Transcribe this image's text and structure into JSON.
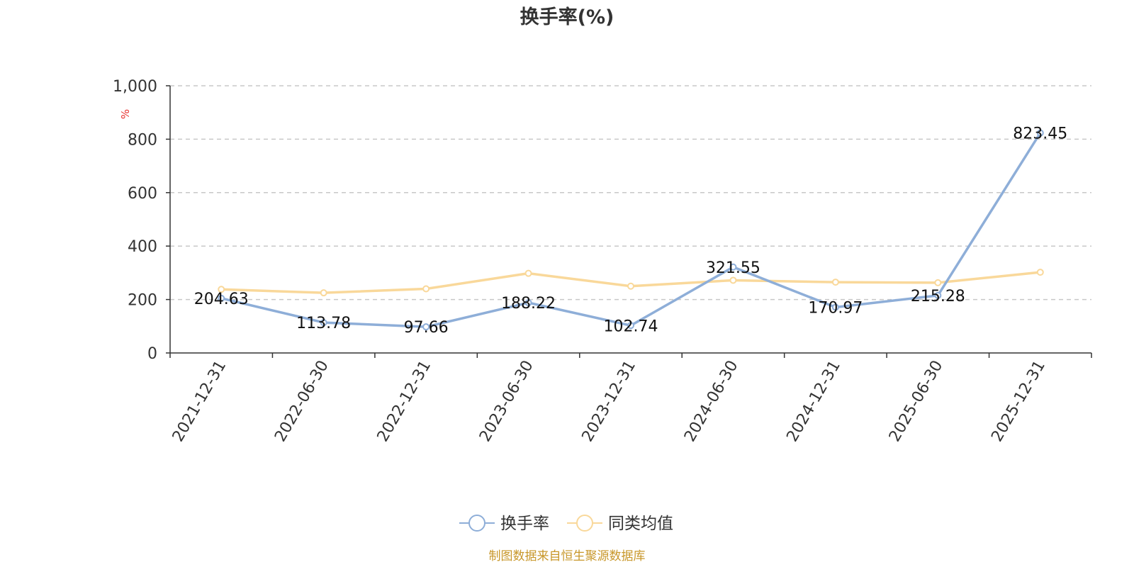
{
  "chart_data": {
    "type": "line",
    "title": "换手率(%)",
    "ylabel": "%",
    "categories": [
      "2021-12-31",
      "2022-06-30",
      "2022-12-31",
      "2023-06-30",
      "2023-12-31",
      "2024-06-30",
      "2024-12-31",
      "2025-06-30",
      "2025-12-31"
    ],
    "series": [
      {
        "name": "换手率",
        "color": "#8eaed8",
        "values": [
          204.63,
          113.78,
          97.66,
          188.22,
          102.74,
          321.55,
          170.97,
          215.28,
          823.45
        ],
        "labels": [
          "204.63",
          "113.78",
          "97.66",
          "188.22",
          "102.74",
          "321.55",
          "170.97",
          "215.28",
          "823.45"
        ]
      },
      {
        "name": "同类均值",
        "color": "#f9d89a",
        "values": [
          238,
          225,
          240,
          298,
          250,
          272,
          265,
          263,
          302
        ]
      }
    ],
    "ylim": [
      0,
      1000
    ],
    "yticks": [
      0,
      200,
      400,
      600,
      800,
      1000
    ],
    "ytick_labels": [
      "0",
      "200",
      "400",
      "600",
      "800",
      "1,000"
    ],
    "grid": "horizontal-dashed",
    "legend_position": "bottom-center"
  },
  "source": "制图数据来自恒生聚源数据库"
}
